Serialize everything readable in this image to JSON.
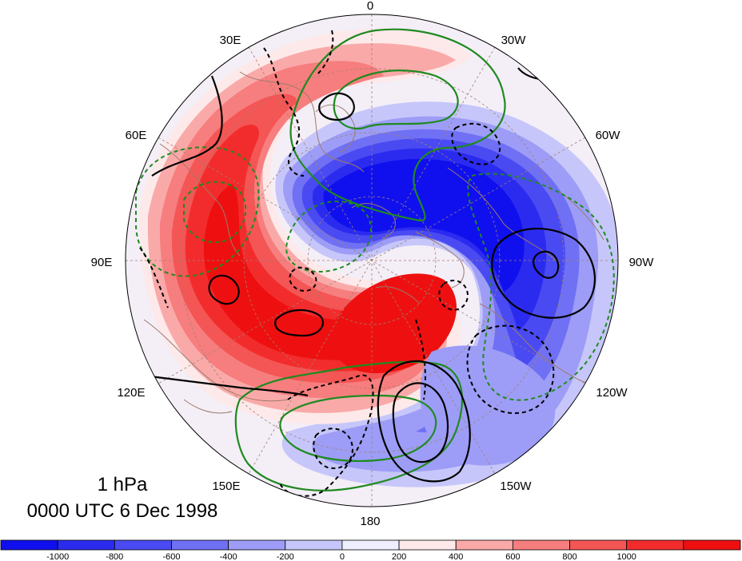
{
  "map": {
    "projection": "north polar stereographic",
    "level": "1 hPa",
    "valid_time": "0000 UTC 6 Dec 1998",
    "longitude_labels": [
      {
        "text": "0",
        "lon": 0
      },
      {
        "text": "30W",
        "lon": -30
      },
      {
        "text": "60W",
        "lon": -60
      },
      {
        "text": "90W",
        "lon": -90
      },
      {
        "text": "120W",
        "lon": -120
      },
      {
        "text": "150W",
        "lon": -150
      },
      {
        "text": "180",
        "lon": 180
      },
      {
        "text": "150E",
        "lon": 150
      },
      {
        "text": "120E",
        "lon": 120
      },
      {
        "text": "90E",
        "lon": 90
      },
      {
        "text": "60E",
        "lon": 60
      },
      {
        "text": "30E",
        "lon": 30
      }
    ],
    "shading_field": {
      "colors": {
        "-1100": "#1010ee",
        "-1000": "#2b2bf0",
        "-800": "#4a4af2",
        "-600": "#7070f4",
        "-400": "#9d9df7",
        "-200": "#c6c6fa",
        "0": "#eeeefd",
        "200": "#fde9e9",
        "400": "#faa9a9",
        "600": "#f77e7e",
        "800": "#f45555",
        "1000": "#f22c2c",
        "1100": "#ee1010"
      }
    },
    "contour_colors": {
      "black": "#000000",
      "green": "#1f8a1f",
      "coast": "#9c7b6a",
      "grid": "#a08070"
    }
  },
  "colorbar": {
    "ticks": [
      "-1000",
      "-800",
      "-600",
      "-400",
      "-200",
      "0",
      "200",
      "400",
      "600",
      "800",
      "1000"
    ],
    "bins": [
      "#1010ee",
      "#2b2bf0",
      "#4a4af2",
      "#7070f4",
      "#9d9df7",
      "#c6c6fa",
      "#eeeefd",
      "#fde9e9",
      "#faa9a9",
      "#f77e7e",
      "#f45555",
      "#f22c2c",
      "#ee1010"
    ]
  }
}
